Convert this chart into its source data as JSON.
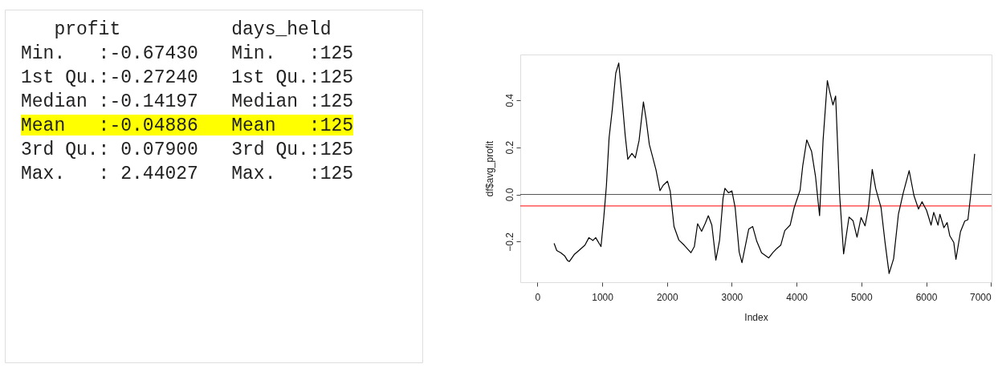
{
  "chart_data": [
    {
      "type": "other",
      "annotations": [
        "   profit          days_held",
        "Min.   :-0.67430   Min.   :125",
        "1st Qu.:-0.27240   1st Qu.:125",
        "Median :-0.14197   Median :125",
        "Mean   :-0.04886   Mean   :125",
        "3rd Qu.: 0.07900   3rd Qu.:125",
        "Max.   : 2.44027   Max.   :125"
      ],
      "colors": [
        null,
        null,
        null,
        null,
        "#ffff00",
        null,
        null
      ]
    },
    {
      "type": "line",
      "xlabel": "Index",
      "ylabel": "df$avg_profit",
      "xlim": [
        -265,
        7010
      ],
      "ylim": [
        -0.372,
        0.593
      ],
      "xticks": [
        0,
        1000,
        2000,
        3000,
        4000,
        5000,
        6000,
        7000
      ],
      "yticks": [
        -0.2,
        {
          "value": 0,
          "label": "0.0"
        },
        0.2,
        0.4
      ],
      "grid": false,
      "ref_lines": [
        {
          "axis": "y",
          "value": 0,
          "color": "#555555"
        },
        {
          "axis": "y",
          "value": -0.04886,
          "color": "#ff0000"
        }
      ],
      "series": [
        {
          "color": "#000000",
          "x": [
            257,
            298,
            360,
            422,
            464,
            493,
            567,
            650,
            733,
            795,
            857,
            899,
            981,
            1023,
            1064,
            1106,
            1155,
            1209,
            1255,
            1304,
            1354,
            1395,
            1458,
            1511,
            1569,
            1636,
            1677,
            1727,
            1776,
            1830,
            1892,
            1942,
            2008,
            2050,
            2108,
            2182,
            2265,
            2369,
            2422,
            2472,
            2534,
            2588,
            2638,
            2692,
            2754,
            2812,
            2865,
            2894,
            2948,
            3002,
            3052,
            3114,
            3157,
            3261,
            3323,
            3385,
            3459,
            3571,
            3633,
            3695,
            3756,
            3818,
            3901,
            3963,
            4054,
            4095,
            4157,
            4231,
            4293,
            4355,
            4409,
            4475,
            4508,
            4561,
            4603,
            4664,
            4726,
            4809,
            4871,
            4933,
            4995,
            5057,
            5110,
            5168,
            5222,
            5304,
            5366,
            5428,
            5498,
            5572,
            5647,
            5738,
            5812,
            5882,
            5936,
            6006,
            6076,
            6117,
            6183,
            6212,
            6274,
            6324,
            6365,
            6427,
            6460,
            6530,
            6596,
            6645,
            6687,
            6749
          ],
          "values": [
            -0.207,
            -0.238,
            -0.247,
            -0.261,
            -0.28,
            -0.284,
            -0.255,
            -0.235,
            -0.215,
            -0.183,
            -0.195,
            -0.183,
            -0.221,
            -0.101,
            0.035,
            0.24,
            0.36,
            0.514,
            0.557,
            0.411,
            0.252,
            0.149,
            0.174,
            0.155,
            0.229,
            0.392,
            0.32,
            0.212,
            0.161,
            0.104,
            0.016,
            0.039,
            0.056,
            0.013,
            -0.136,
            -0.193,
            -0.215,
            -0.247,
            -0.221,
            -0.124,
            -0.156,
            -0.124,
            -0.09,
            -0.13,
            -0.278,
            -0.193,
            -0.016,
            0.026,
            0.007,
            0.015,
            -0.056,
            -0.244,
            -0.289,
            -0.147,
            -0.136,
            -0.198,
            -0.247,
            -0.269,
            -0.247,
            -0.229,
            -0.215,
            -0.153,
            -0.13,
            -0.056,
            0.018,
            0.121,
            0.231,
            0.183,
            0.075,
            -0.09,
            0.229,
            0.482,
            0.44,
            0.379,
            0.417,
            0.001,
            -0.252,
            -0.096,
            -0.111,
            -0.181,
            -0.098,
            -0.133,
            -0.056,
            0.106,
            0.024,
            -0.056,
            -0.204,
            -0.335,
            -0.272,
            -0.084,
            0.007,
            0.101,
            -0.005,
            -0.062,
            -0.031,
            -0.067,
            -0.13,
            -0.076,
            -0.13,
            -0.084,
            -0.141,
            -0.119,
            -0.175,
            -0.204,
            -0.275,
            -0.158,
            -0.113,
            -0.107,
            -0.005,
            0.172
          ]
        }
      ]
    }
  ]
}
